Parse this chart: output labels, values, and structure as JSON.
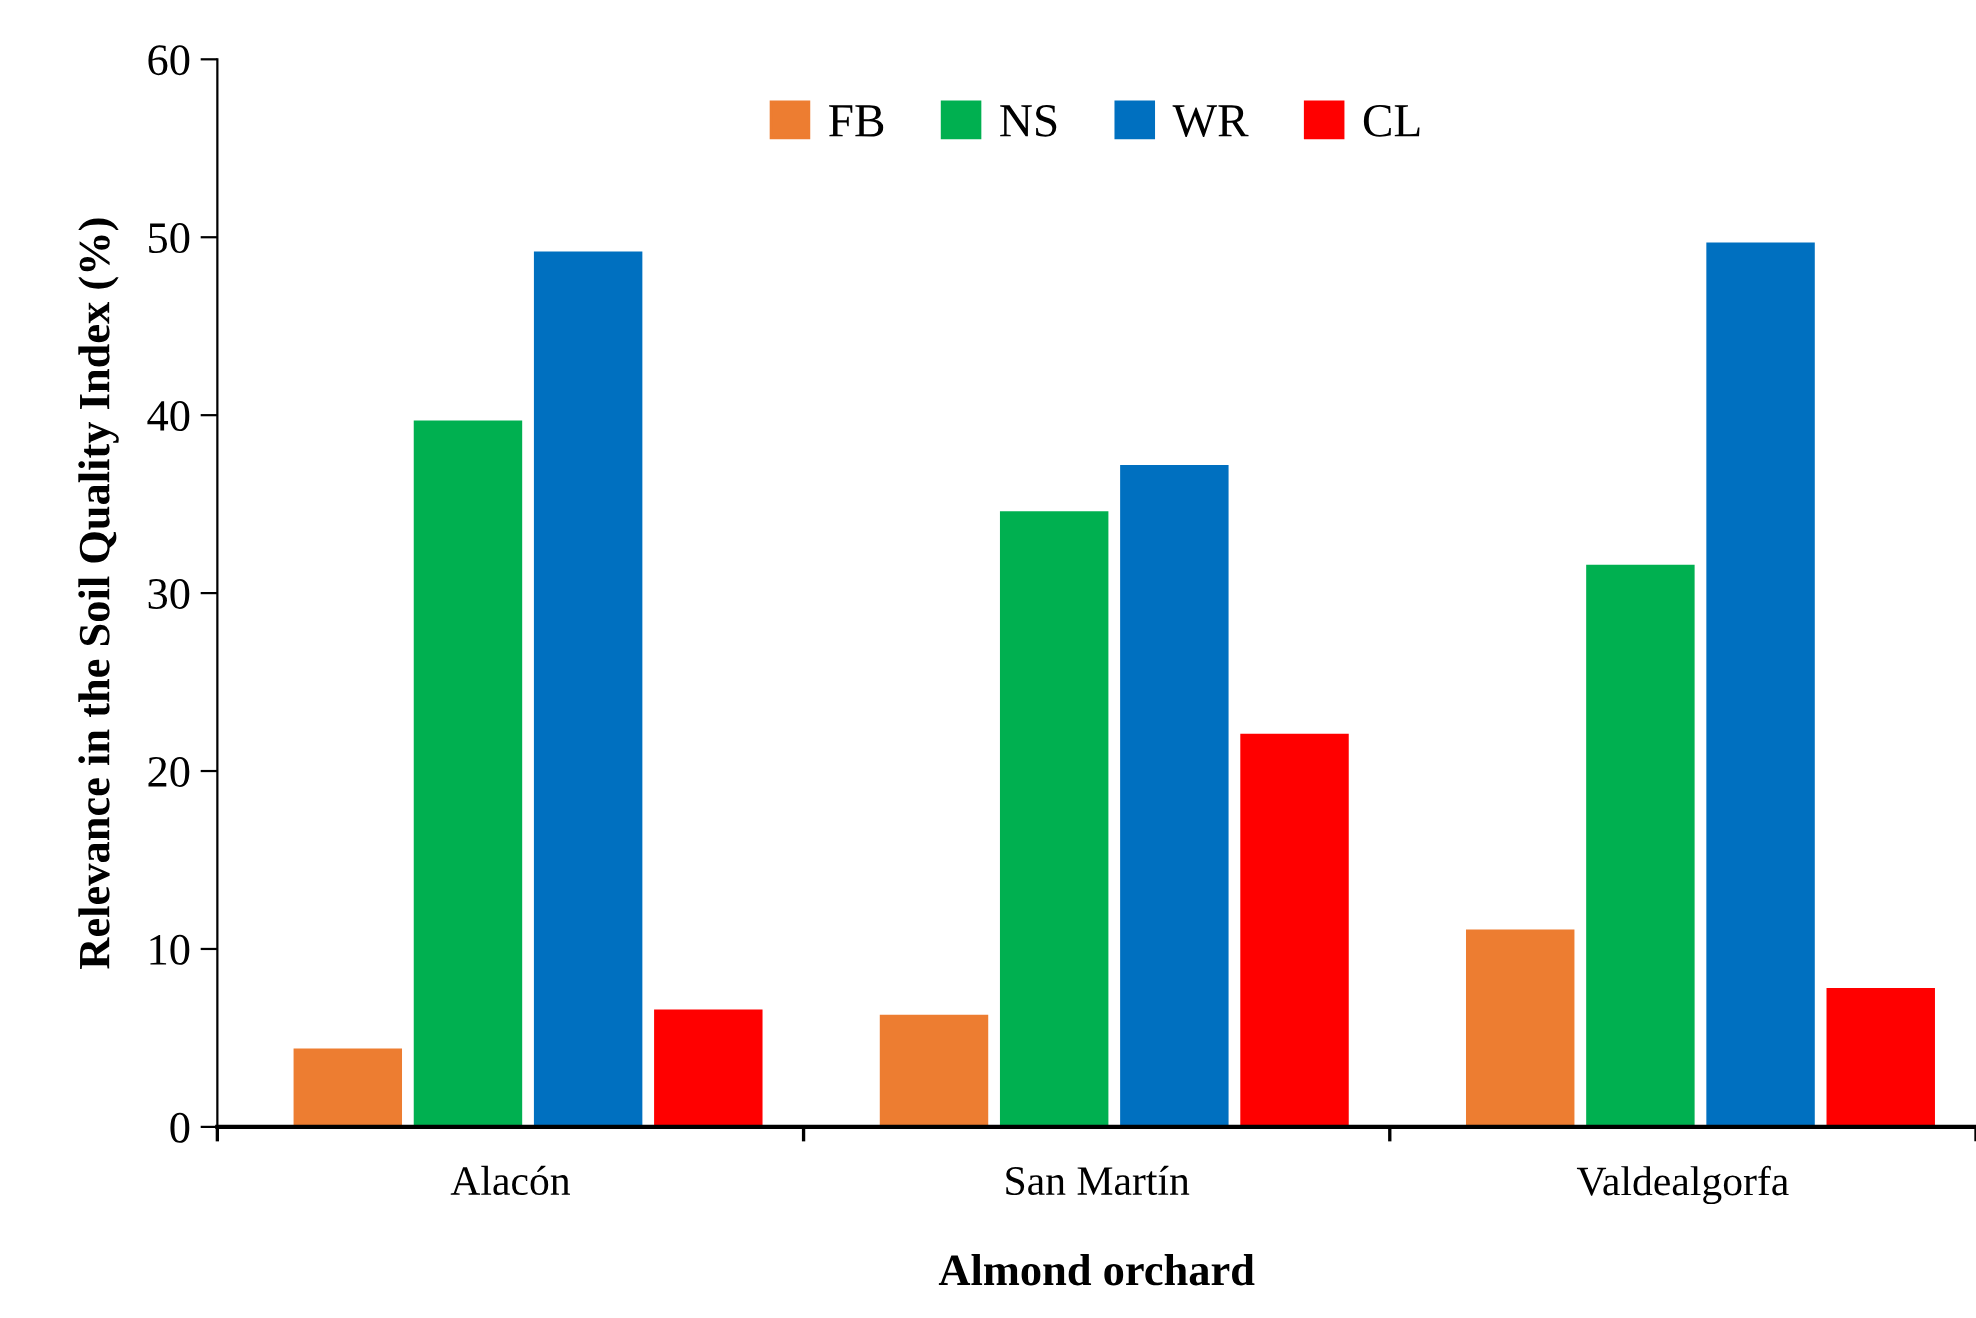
{
  "chart_data": {
    "type": "bar",
    "xlabel": "Almond orchard",
    "ylabel": "Relevance in the Soil Quality Index (%)",
    "categories": [
      "Alacón",
      "San Martín",
      "Valdealgorfa"
    ],
    "series": [
      {
        "name": "FB",
        "color": "#ed7d31",
        "values": [
          4.4,
          6.3,
          11.1
        ]
      },
      {
        "name": "NS",
        "color": "#00b050",
        "values": [
          39.7,
          34.6,
          31.6
        ]
      },
      {
        "name": "WR",
        "color": "#0070c0",
        "values": [
          49.2,
          37.2,
          49.7
        ]
      },
      {
        "name": "CL",
        "color": "#ff0000",
        "values": [
          6.6,
          22.1,
          7.8
        ]
      }
    ],
    "ylim": [
      0,
      60
    ],
    "yticks": [
      0,
      10,
      20,
      30,
      40,
      50,
      60
    ],
    "grid": false,
    "legend": "top"
  }
}
